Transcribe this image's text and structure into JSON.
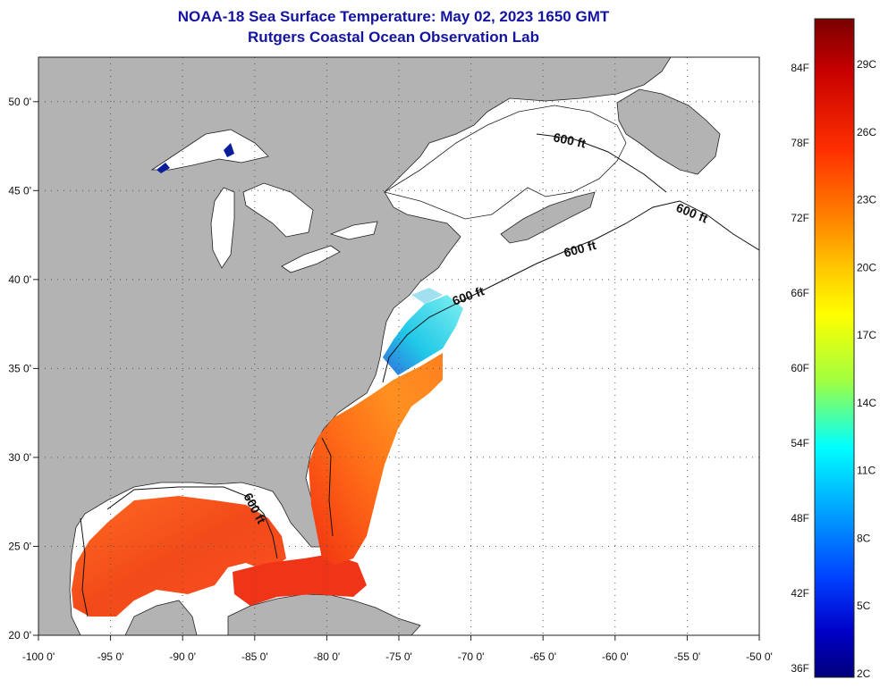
{
  "header": {
    "title": "NOAA-18 Sea Surface Temperature:  May 02, 2023 1650 GMT",
    "subtitle": "Rutgers Coastal Ocean Observation Lab"
  },
  "map": {
    "lon_range": [
      -100,
      -50
    ],
    "lat_range": [
      20,
      52.5
    ],
    "x_ticks": [
      "-100 0'",
      "-95 0'",
      "-90 0'",
      "-85 0'",
      "-80 0'",
      "-75 0'",
      "-70 0'",
      "-65 0'",
      "-60 0'",
      "-55 0'",
      "-50 0'"
    ],
    "y_ticks": [
      "50 0'",
      "45 0'",
      "40 0'",
      "35 0'",
      "30 0'",
      "25 0'",
      "20 0'"
    ],
    "isobath_labels": [
      "600 ft",
      "600 ft",
      "600 ft",
      "600 ft",
      "600 ft"
    ],
    "land_color": "#b3b3b3",
    "ocean_color": "#ffffff"
  },
  "colorbar": {
    "fahrenheit_labels": [
      "84F",
      "78F",
      "72F",
      "66F",
      "60F",
      "54F",
      "48F",
      "42F",
      "36F"
    ],
    "celsius_labels": [
      "29C",
      "26C",
      "23C",
      "20C",
      "17C",
      "14C",
      "11C",
      "8C",
      "5C",
      "2C"
    ],
    "colors": [
      "#7a0000",
      "#c80000",
      "#ff3000",
      "#ff8000",
      "#ffc800",
      "#ffff00",
      "#a0ff40",
      "#00ffff",
      "#00a0ff",
      "#0040ff",
      "#0000c8",
      "#00007a"
    ]
  }
}
